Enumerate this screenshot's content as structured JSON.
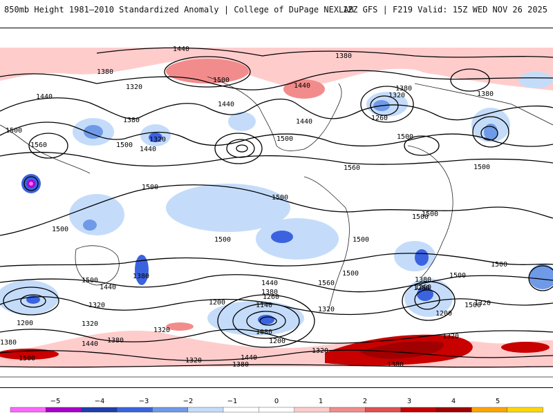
{
  "header": {
    "left_title": "850mb Height 1981–2010 Standardized Anomaly | College of DuPage NEXLAB",
    "right_title": "12Z GFS | F219 Valid: 15Z WED NOV 26 2025"
  },
  "map": {
    "contour_labels": [
      {
        "text": "1440"
      },
      {
        "text": "1380"
      },
      {
        "text": "1380"
      },
      {
        "text": "1500"
      },
      {
        "text": "1320"
      },
      {
        "text": "1440"
      },
      {
        "text": "1440"
      },
      {
        "text": "1380"
      },
      {
        "text": "1320"
      },
      {
        "text": "1380"
      },
      {
        "text": "1500"
      },
      {
        "text": "1560"
      },
      {
        "text": "1380"
      },
      {
        "text": "1500"
      },
      {
        "text": "1440"
      },
      {
        "text": "1320"
      },
      {
        "text": "1500"
      },
      {
        "text": "1440"
      },
      {
        "text": "1500"
      },
      {
        "text": "1260"
      },
      {
        "text": "1440"
      },
      {
        "text": "1500"
      },
      {
        "text": "1560"
      },
      {
        "text": "1500"
      },
      {
        "text": "1500"
      },
      {
        "text": "1500"
      },
      {
        "text": "1500"
      },
      {
        "text": "1500"
      },
      {
        "text": "1500"
      },
      {
        "text": "1500"
      },
      {
        "text": "1500"
      },
      {
        "text": "1500"
      },
      {
        "text": "1500"
      },
      {
        "text": "1440"
      },
      {
        "text": "1380"
      },
      {
        "text": "1260"
      },
      {
        "text": "1200"
      },
      {
        "text": "1320"
      },
      {
        "text": "1440"
      },
      {
        "text": "1380"
      },
      {
        "text": "1320"
      },
      {
        "text": "1200"
      },
      {
        "text": "1260"
      },
      {
        "text": "1140"
      },
      {
        "text": "1200"
      },
      {
        "text": "1080"
      },
      {
        "text": "1320"
      },
      {
        "text": "1320"
      },
      {
        "text": "1380"
      },
      {
        "text": "1260"
      },
      {
        "text": "1200"
      },
      {
        "text": "1320"
      },
      {
        "text": "1380"
      },
      {
        "text": "1440"
      },
      {
        "text": "1500"
      },
      {
        "text": "1500"
      },
      {
        "text": "1320"
      },
      {
        "text": "1440"
      },
      {
        "text": "1380"
      },
      {
        "text": "1380"
      },
      {
        "text": "1500"
      },
      {
        "text": "1320"
      },
      {
        "text": "1380"
      },
      {
        "text": "1320"
      },
      {
        "text": "1560"
      }
    ]
  },
  "colorbar": {
    "ticks": [
      "−5",
      "−4",
      "−3",
      "−2",
      "−1",
      "0",
      "1",
      "2",
      "3",
      "4",
      "5"
    ],
    "colors": [
      "#ff66ff",
      "#aa00cc",
      "#1e3faa",
      "#3b63e0",
      "#6f9ae8",
      "#c4dcfa",
      "#ffffff",
      "#ffffff",
      "#ffcccc",
      "#f28c8c",
      "#e05050",
      "#c80000",
      "#a00000",
      "#ffa500",
      "#ffd700"
    ]
  }
}
